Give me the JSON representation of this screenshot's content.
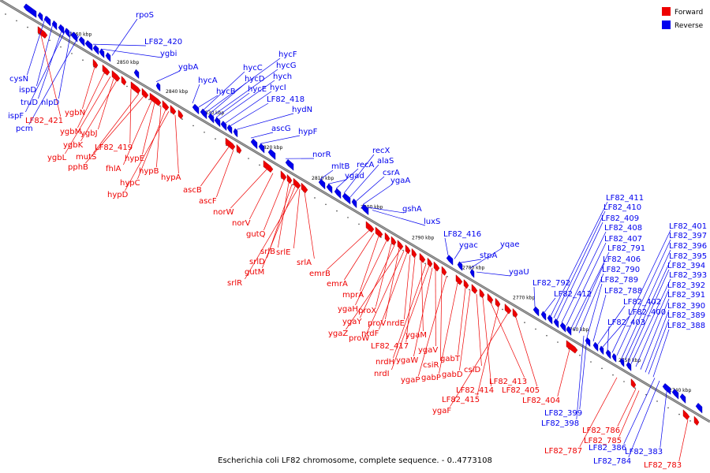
{
  "caption": "Escherichia coli LF82 chromosome, complete sequence. - 0..4773108",
  "colors": {
    "forward": "#ee0000",
    "reverse": "#0000ee",
    "axis": "#999999"
  },
  "legend": [
    {
      "label": "Forward",
      "strand": "forward"
    },
    {
      "label": "Reverse",
      "strand": "reverse"
    }
  ],
  "ticks": [
    {
      "kbp": 2860,
      "label": "2860 kbp"
    },
    {
      "kbp": 2850,
      "label": "2850 kbp"
    },
    {
      "kbp": 2840,
      "label": "2840 kbp"
    },
    {
      "kbp": 2830,
      "label": "2830 kbp"
    },
    {
      "kbp": 2820,
      "label": "2820 kbp"
    },
    {
      "kbp": 2810,
      "label": "2810 kbp"
    },
    {
      "kbp": 2800,
      "label": "2800 kbp"
    },
    {
      "kbp": 2790,
      "label": "2790 kbp"
    },
    {
      "kbp": 2780,
      "label": "2780 kbp"
    },
    {
      "kbp": 2770,
      "label": "2770 kbp"
    },
    {
      "kbp": 2760,
      "label": "2760 kbp"
    },
    {
      "kbp": 2750,
      "label": "2750 kbp"
    },
    {
      "kbp": 2740,
      "label": "2740 kbp"
    }
  ],
  "reverse_genes": [
    "rpoS",
    "LF82_420",
    "ygbi",
    "ygbA",
    "cysN",
    "ispD",
    "truD",
    "nlpD",
    "ispF",
    "pcm",
    "hycA",
    "hycB",
    "hycC",
    "hycD",
    "hycE",
    "hycF",
    "hycG",
    "hych",
    "hycI",
    "LF82_418",
    "hydN",
    "ascG",
    "hypF",
    "norR",
    "mltB",
    "ygad",
    "recA",
    "recX",
    "alaS",
    "csrA",
    "ygaA",
    "gshA",
    "luxS",
    "LF82_416",
    "ygac",
    "stpA",
    "yqae",
    "ygaU",
    "LF82_792",
    "LF82_412",
    "LF82_411",
    "LF82_410",
    "LF82_409",
    "LF82_408",
    "LF82_407",
    "LF82_791",
    "LF82_406",
    "LF82_790",
    "LF82_789",
    "LF82_788",
    "LF82_402",
    "LF82_400",
    "LF82_403",
    "LF82_401",
    "LF82_397",
    "LF82_396",
    "LF82_395",
    "LF82_394",
    "LF82_393",
    "LF82_392",
    "LF82_391",
    "LF82_390",
    "LF82_389",
    "LF82_388",
    "LF82_399",
    "LF82_398",
    "LF82_386",
    "LF82_784",
    "LF82_383"
  ],
  "forward_genes": [
    "LF82_421",
    "ygbN",
    "ygbM",
    "ygbJ",
    "ygbK",
    "ygbL",
    "LF82_419",
    "mutS",
    "pphB",
    "fhlA",
    "hypE",
    "hypB",
    "hypC",
    "hypD",
    "hypA",
    "ascB",
    "ascF",
    "norW",
    "norV",
    "gutQ",
    "srlB",
    "srlD",
    "gutM",
    "srlR",
    "srlE",
    "srlA",
    "emrB",
    "emrA",
    "mprA",
    "ygaH",
    "proX",
    "ygaY",
    "proV",
    "ygaZ",
    "proW",
    "nrdF",
    "nrdE",
    "LF82_417",
    "ygaM",
    "nrdH",
    "nrdI",
    "ygaW",
    "ygaV",
    "csiR",
    "ygaP",
    "gabP",
    "gabT",
    "gabD",
    "csiD",
    "LF82_414",
    "LF82_413",
    "LF82_415",
    "ygaF",
    "LF82_405",
    "LF82_404",
    "LF82_786",
    "LF82_785",
    "LF82_787",
    "LF82_783"
  ]
}
